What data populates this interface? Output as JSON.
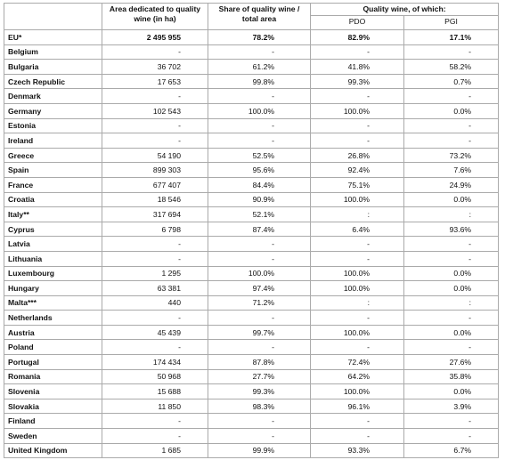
{
  "table": {
    "header": {
      "area": "Area dedicated to quality wine (in ha)",
      "share": "Share of quality wine / total area",
      "quality": "Quality wine, of which:",
      "pdo": "PDO",
      "pgi": "PGI"
    },
    "rows": [
      [
        "EU*",
        "2 495 955",
        "78.2%",
        "82.9%",
        "17.1%"
      ],
      [
        "Belgium",
        "-",
        "-",
        "-",
        "-"
      ],
      [
        "Bulgaria",
        "36 702",
        "61.2%",
        "41.8%",
        "58.2%"
      ],
      [
        "Czech Republic",
        "17 653",
        "99.8%",
        "99.3%",
        "0.7%"
      ],
      [
        "Denmark",
        "-",
        "-",
        "-",
        "-"
      ],
      [
        "Germany",
        "102 543",
        "100.0%",
        "100.0%",
        "0.0%"
      ],
      [
        "Estonia",
        "-",
        "-",
        "-",
        "-"
      ],
      [
        "Ireland",
        "-",
        "-",
        "-",
        "-"
      ],
      [
        "Greece",
        "54 190",
        "52.5%",
        "26.8%",
        "73.2%"
      ],
      [
        "Spain",
        "899 303",
        "95.6%",
        "92.4%",
        "7.6%"
      ],
      [
        "France",
        "677 407",
        "84.4%",
        "75.1%",
        "24.9%"
      ],
      [
        "Croatia",
        "18 546",
        "90.9%",
        "100.0%",
        "0.0%"
      ],
      [
        "Italy**",
        "317 694",
        "52.1%",
        ":",
        ":"
      ],
      [
        "Cyprus",
        "6 798",
        "87.4%",
        "6.4%",
        "93.6%"
      ],
      [
        "Latvia",
        "-",
        "-",
        "-",
        "-"
      ],
      [
        "Lithuania",
        "-",
        "-",
        "-",
        "-"
      ],
      [
        "Luxembourg",
        "1 295",
        "100.0%",
        "100.0%",
        "0.0%"
      ],
      [
        "Hungary",
        "63 381",
        "97.4%",
        "100.0%",
        "0.0%"
      ],
      [
        "Malta***",
        "440",
        "71.2%",
        ":",
        ":"
      ],
      [
        "Netherlands",
        "-",
        "-",
        "-",
        "-"
      ],
      [
        "Austria",
        "45 439",
        "99.7%",
        "100.0%",
        "0.0%"
      ],
      [
        "Poland",
        "-",
        "-",
        "-",
        "-"
      ],
      [
        "Portugal",
        "174 434",
        "87.8%",
        "72.4%",
        "27.6%"
      ],
      [
        "Romania",
        "50 968",
        "27.7%",
        "64.2%",
        "35.8%"
      ],
      [
        "Slovenia",
        "15 688",
        "99.3%",
        "100.0%",
        "0.0%"
      ],
      [
        "Slovakia",
        "11 850",
        "98.3%",
        "96.1%",
        "3.9%"
      ],
      [
        "Finland",
        "-",
        "-",
        "-",
        "-"
      ],
      [
        "Sweden",
        "-",
        "-",
        "-",
        "-"
      ],
      [
        "United Kingdom",
        "1 685",
        "99.9%",
        "93.3%",
        "6.7%"
      ]
    ]
  }
}
